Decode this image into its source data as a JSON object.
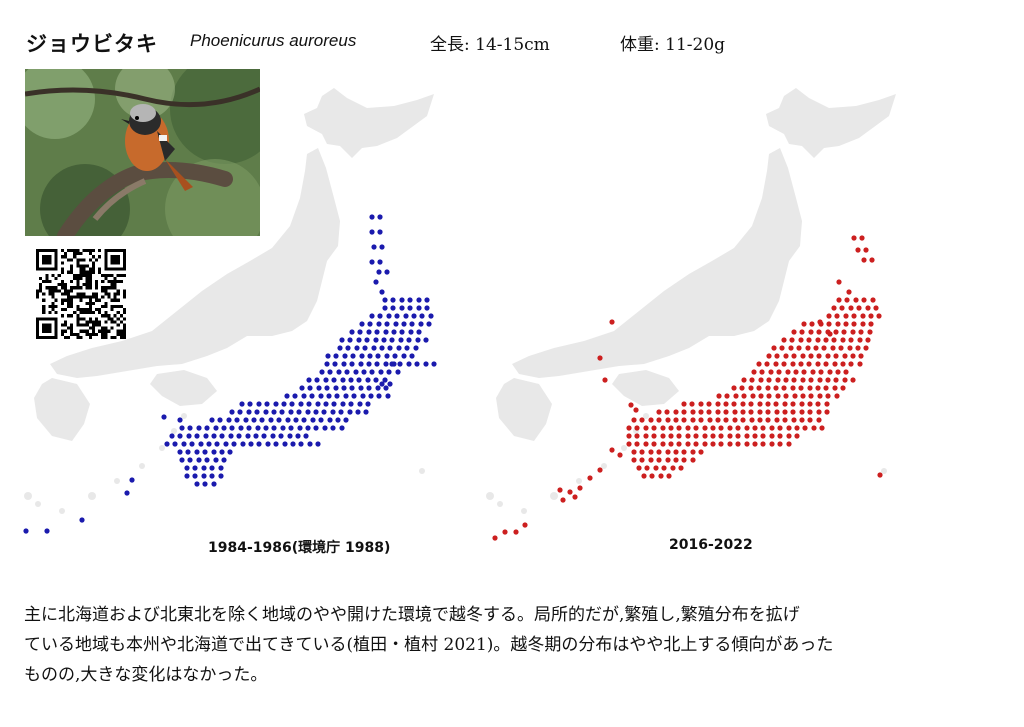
{
  "species": {
    "name_ja": "ジョウビタキ",
    "name_sci": "Phoenicurus auroreus",
    "length": "全長: 14-15cm",
    "weight": "体重: 11-20g"
  },
  "maps": [
    {
      "period": "1984-1986(環境庁 1988)",
      "dot_color": "#1a1aad"
    },
    {
      "period": "2016-2022",
      "dot_color": "#cc1f1f"
    }
  ],
  "land_color": "#e8e8e8",
  "description": [
    "主に北海道および北東北を除く地域のやや開けた環境で越冬する。局所的だが,繁殖し,繁殖分布を拡げ",
    "ている地域も本州や北海道で出てきている(植田・植村 2021)。越冬期の分布はやや北上する傾向があった",
    "ものの,大きな変化はなかった。"
  ]
}
